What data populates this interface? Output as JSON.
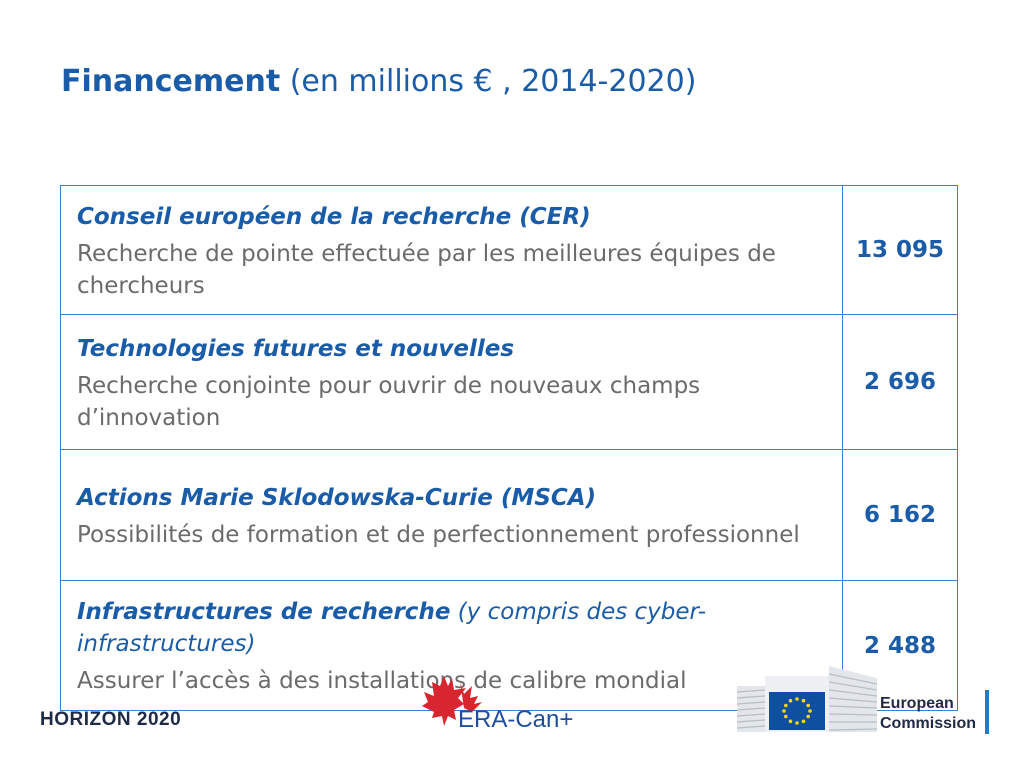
{
  "title": {
    "bold": "Financement",
    "rest": " (en millions € , 2014-2020)"
  },
  "rows": [
    {
      "name": "Conseil européen de la recherche (CER)",
      "name_suffix": "",
      "description": "Recherche de pointe effectuée par les meilleures équipes de chercheurs",
      "value": "13 095"
    },
    {
      "name": "Technologies futures et nouvelles",
      "name_suffix": "",
      "description": "Recherche conjointe pour ouvrir de nouveaux champs d’innovation",
      "value": "2 696"
    },
    {
      "name": "Actions Marie Sklodowska-Curie (MSCA)",
      "name_suffix": "",
      "description": "Possibilités de formation et de perfectionnement professionnel",
      "value": "6 162"
    },
    {
      "name": "Infrastructures de recherche",
      "name_suffix": " (y compris des cyber-infrastructures)",
      "description": "Assurer l’accès à des installations de calibre mondial",
      "value": "2 488"
    }
  ],
  "footer": {
    "horizon_label": "HORIZON 2020",
    "era_label": "ERA-Can+",
    "ec_line1": "European",
    "ec_line2": "Commission"
  },
  "colors": {
    "accent_blue": "#1a5ca8",
    "border_blue": "#3a7fd0",
    "description_gray": "#6b6b6b",
    "maple_red": "#d7262e",
    "eu_flag_blue": "#0f4fa0",
    "eu_star_yellow": "#ffd617"
  },
  "icons": [
    "maple-leaf-icon",
    "eu-flag-icon",
    "commission-building-icon"
  ]
}
